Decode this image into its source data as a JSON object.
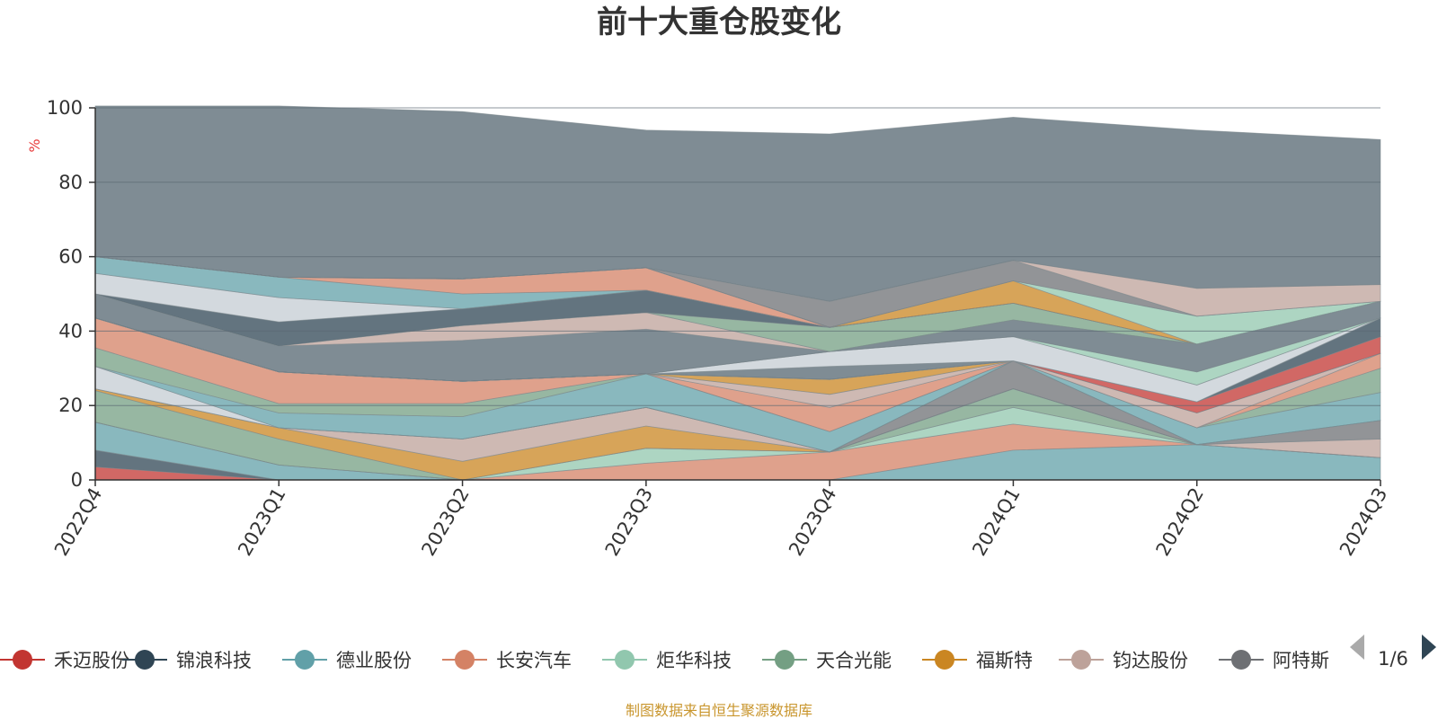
{
  "chart_data": {
    "type": "area",
    "stacked": true,
    "title": "前十大重仓股变化",
    "ylabel": "%",
    "ylim": [
      0,
      100
    ],
    "yticks": [
      0,
      20,
      40,
      60,
      80,
      100
    ],
    "grid": true,
    "categories": [
      "2022Q4",
      "2023Q1",
      "2023Q2",
      "2023Q3",
      "2023Q4",
      "2024Q1",
      "2024Q2",
      "2024Q3"
    ],
    "series": [
      {
        "name": "禾迈股份",
        "color": "#c23531",
        "values": [
          3.5,
          0,
          0,
          0,
          0,
          0,
          0,
          0
        ]
      },
      {
        "name": "锦浪科技",
        "color": "#2f4554",
        "values": [
          4.5,
          0,
          0,
          0,
          0,
          0,
          0,
          0
        ]
      },
      {
        "name": "德业股份",
        "color": "#61a0a8",
        "values": [
          7.5,
          4,
          0,
          0,
          0,
          8,
          9.5,
          6
        ]
      },
      {
        "name": "长安汽车",
        "color": "#d48265",
        "values": [
          0,
          0,
          0,
          4.5,
          7.5,
          7,
          0,
          0
        ]
      },
      {
        "name": "炬华科技",
        "color": "#91c7ae",
        "values": [
          0,
          0,
          0,
          4,
          0,
          4.5,
          0,
          0
        ]
      },
      {
        "name": "天合光能",
        "color": "#749f83",
        "values": [
          8.5,
          7,
          0,
          0,
          0,
          5,
          0,
          0
        ]
      },
      {
        "name": "福斯特",
        "color": "#ca8622",
        "values": [
          0.5,
          3,
          5,
          6,
          0,
          0,
          0,
          0
        ]
      },
      {
        "name": "钧达股份",
        "color": "#bda29a",
        "values": [
          0,
          0,
          6,
          5,
          0,
          0,
          0,
          5
        ]
      },
      {
        "name": "阿特斯",
        "color": "#6e7074",
        "values": [
          0,
          0,
          0,
          0,
          0,
          7.5,
          0,
          5
        ]
      },
      {
        "name": "",
        "color": "#546570",
        "values": [
          0,
          0,
          0,
          0,
          0,
          0,
          0,
          0
        ]
      },
      {
        "name": "",
        "color": "#c4ccd3",
        "values": [
          6,
          0,
          0,
          0,
          0,
          0,
          0,
          0
        ]
      },
      {
        "name": "",
        "color": "#61a0a8",
        "values": [
          0,
          4,
          6,
          9,
          5.5,
          0,
          4.5,
          7.5
        ]
      },
      {
        "name": "",
        "color": "#749f83",
        "values": [
          5,
          2.5,
          3.5,
          0,
          0,
          0,
          0,
          6.5
        ]
      },
      {
        "name": "",
        "color": "#d48265",
        "values": [
          8,
          8.5,
          6,
          0,
          6.5,
          0,
          0,
          4
        ]
      },
      {
        "name": "",
        "color": "#bda29a",
        "values": [
          0,
          0,
          0,
          0,
          3.5,
          0,
          4,
          0
        ]
      },
      {
        "name": "",
        "color": "#ca8622",
        "values": [
          0,
          0,
          0,
          0,
          4,
          0,
          0,
          0
        ]
      },
      {
        "name": "",
        "color": "#c23531",
        "values": [
          0,
          0,
          0,
          0,
          0,
          0,
          3,
          4.5
        ]
      },
      {
        "name": "",
        "color": "#2f4554",
        "values": [
          0,
          0,
          0,
          0,
          0,
          0,
          0,
          5
        ]
      },
      {
        "name": "",
        "color": "#546570",
        "values": [
          0,
          0,
          0,
          0,
          3.5,
          0,
          0,
          0
        ]
      },
      {
        "name": "",
        "color": "#c4ccd3",
        "values": [
          0,
          0,
          0,
          0,
          4,
          6.5,
          4.5,
          0
        ]
      },
      {
        "name": "",
        "color": "#91c7ae",
        "values": [
          0,
          0,
          0,
          0,
          0,
          0,
          3.5,
          0
        ]
      },
      {
        "name": "",
        "color": "#546570",
        "values": [
          6.5,
          7,
          11,
          12,
          0,
          4.5,
          7.5,
          4.5
        ]
      },
      {
        "name": "",
        "color": "#bda29a",
        "values": [
          0,
          0,
          4,
          4.5,
          0,
          0,
          0,
          0
        ]
      },
      {
        "name": "",
        "color": "#749f83",
        "values": [
          0,
          0,
          0,
          0,
          6.5,
          4.5,
          0,
          0
        ]
      },
      {
        "name": "",
        "color": "#2f4554",
        "values": [
          0,
          6.5,
          4.5,
          6,
          0,
          0,
          0,
          0
        ]
      },
      {
        "name": "",
        "color": "#c4ccd3",
        "values": [
          5.5,
          6.5,
          0,
          0,
          0,
          0,
          0,
          0
        ]
      },
      {
        "name": "",
        "color": "#61a0a8",
        "values": [
          4.5,
          5.5,
          4,
          0,
          0,
          0,
          0,
          0
        ]
      },
      {
        "name": "",
        "color": "#d48265",
        "values": [
          0,
          0,
          4,
          6,
          0,
          0,
          0,
          0
        ]
      },
      {
        "name": "",
        "color": "#ca8622",
        "values": [
          0,
          0,
          0,
          0,
          0,
          6,
          0,
          0
        ]
      },
      {
        "name": "",
        "color": "#91c7ae",
        "values": [
          0,
          0,
          0,
          0,
          0,
          0,
          7.5,
          0
        ]
      },
      {
        "name": "",
        "color": "#6e7074",
        "values": [
          0,
          0,
          0,
          0,
          7,
          5.5,
          0,
          0
        ]
      },
      {
        "name": "",
        "color": "#bda29a",
        "values": [
          0,
          0,
          0,
          0,
          0,
          0,
          7.5,
          4.5
        ]
      },
      {
        "name": "",
        "color": "#546570",
        "values": [
          40.5,
          46,
          45,
          37,
          45,
          38.5,
          42.5,
          39
        ]
      }
    ]
  },
  "legend": {
    "items": [
      {
        "name": "禾迈股份",
        "color": "#c23531"
      },
      {
        "name": "锦浪科技",
        "color": "#2f4554"
      },
      {
        "name": "德业股份",
        "color": "#61a0a8"
      },
      {
        "name": "长安汽车",
        "color": "#d48265"
      },
      {
        "name": "炬华科技",
        "color": "#91c7ae"
      },
      {
        "name": "天合光能",
        "color": "#749f83"
      },
      {
        "name": "福斯特",
        "color": "#ca8622"
      },
      {
        "name": "钧达股份",
        "color": "#bda29a"
      },
      {
        "name": "阿特斯",
        "color": "#6e7074"
      }
    ],
    "page_indicator": "1/6",
    "prev_icon": "triangle-left-icon",
    "next_icon": "triangle-right-icon",
    "prev_color": "#aaaaaa",
    "next_color": "#2f4554"
  },
  "footer": {
    "source_text": "制图数据来自恒生聚源数据库",
    "color": "#c9962e"
  },
  "colors": {
    "unit_color": "#e83c3c",
    "axis_color": "#333333",
    "grid_color": "#5b6a74"
  }
}
